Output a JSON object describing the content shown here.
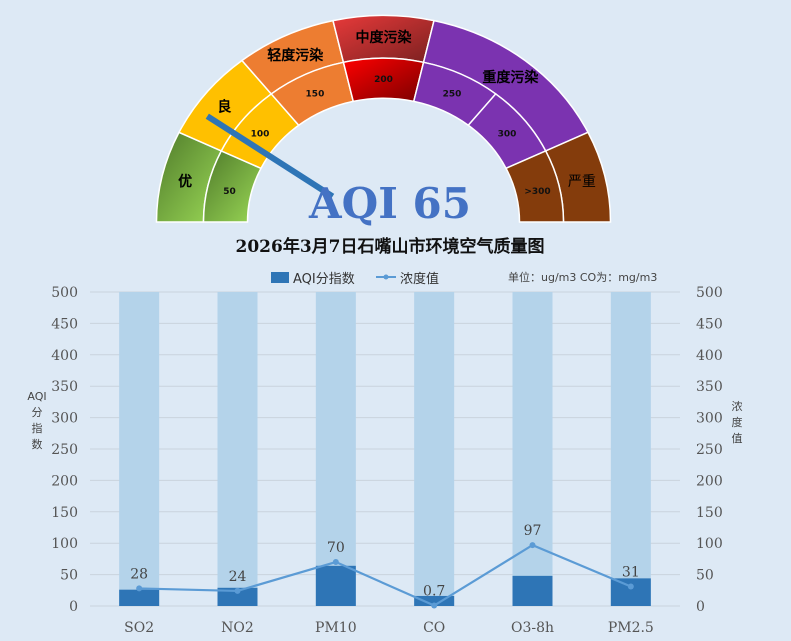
{
  "gauge": {
    "value": 65,
    "label": "AQI 65",
    "inner_segments": [
      {
        "label": "50",
        "color": "#92d050"
      },
      {
        "label": "100",
        "color": "#ffc000"
      },
      {
        "label": "150",
        "color": "#ed7d31"
      },
      {
        "label": "200",
        "color": "#d00000"
      },
      {
        "label": "250",
        "color": "#7b33b0"
      },
      {
        "label": "300",
        "color": "#7b33b0"
      },
      {
        "label": ">300",
        "color": "#843c0c"
      }
    ],
    "outer_segments": [
      {
        "label": "优",
        "span": [
          0,
          1
        ],
        "color": "#6b9e3a"
      },
      {
        "label": "良",
        "span": [
          1,
          2
        ],
        "color": "#ffc000"
      },
      {
        "label": "轻度污染",
        "span": [
          2,
          3
        ],
        "color": "#ed7d31"
      },
      {
        "label": "中度污染",
        "span": [
          3,
          4
        ],
        "color": "#b52a2a"
      },
      {
        "label": "重度污染",
        "span": [
          4,
          6
        ],
        "color": "#7b33b0"
      },
      {
        "label": "严重",
        "span": [
          6,
          7
        ],
        "color": "#843c0c"
      }
    ],
    "needle_color": "#2e75b6"
  },
  "title": "2026年3月7日石嘴山市环境空气质量图",
  "unit_note": "单位：ug/m3  CO为：mg/m3",
  "chart_data": {
    "type": "bar",
    "categories": [
      "SO2",
      "NO2",
      "PM10",
      "CO",
      "O3-8h",
      "PM2.5"
    ],
    "series": [
      {
        "name": "AQI分指数",
        "type": "bar",
        "axis": "left",
        "values": [
          26,
          29,
          64,
          16,
          48,
          44
        ],
        "color": "#2e75b6"
      },
      {
        "name": "浓度值",
        "type": "line",
        "axis": "right",
        "values": [
          28,
          24,
          70,
          0.7,
          97,
          31
        ],
        "labels": [
          "28",
          "24",
          "70",
          "0.7",
          "97",
          "31"
        ],
        "color": "#5b9bd5"
      }
    ],
    "background_bar": {
      "value": 500,
      "color": "#b4d3ea"
    },
    "ylabel_left": "AQI分指数",
    "ylabel_right": "浓度值",
    "ylim": [
      0,
      500
    ],
    "yticks": [
      0,
      50,
      100,
      150,
      200,
      250,
      300,
      350,
      400,
      450,
      500
    ],
    "grid": true,
    "legend": "top"
  }
}
